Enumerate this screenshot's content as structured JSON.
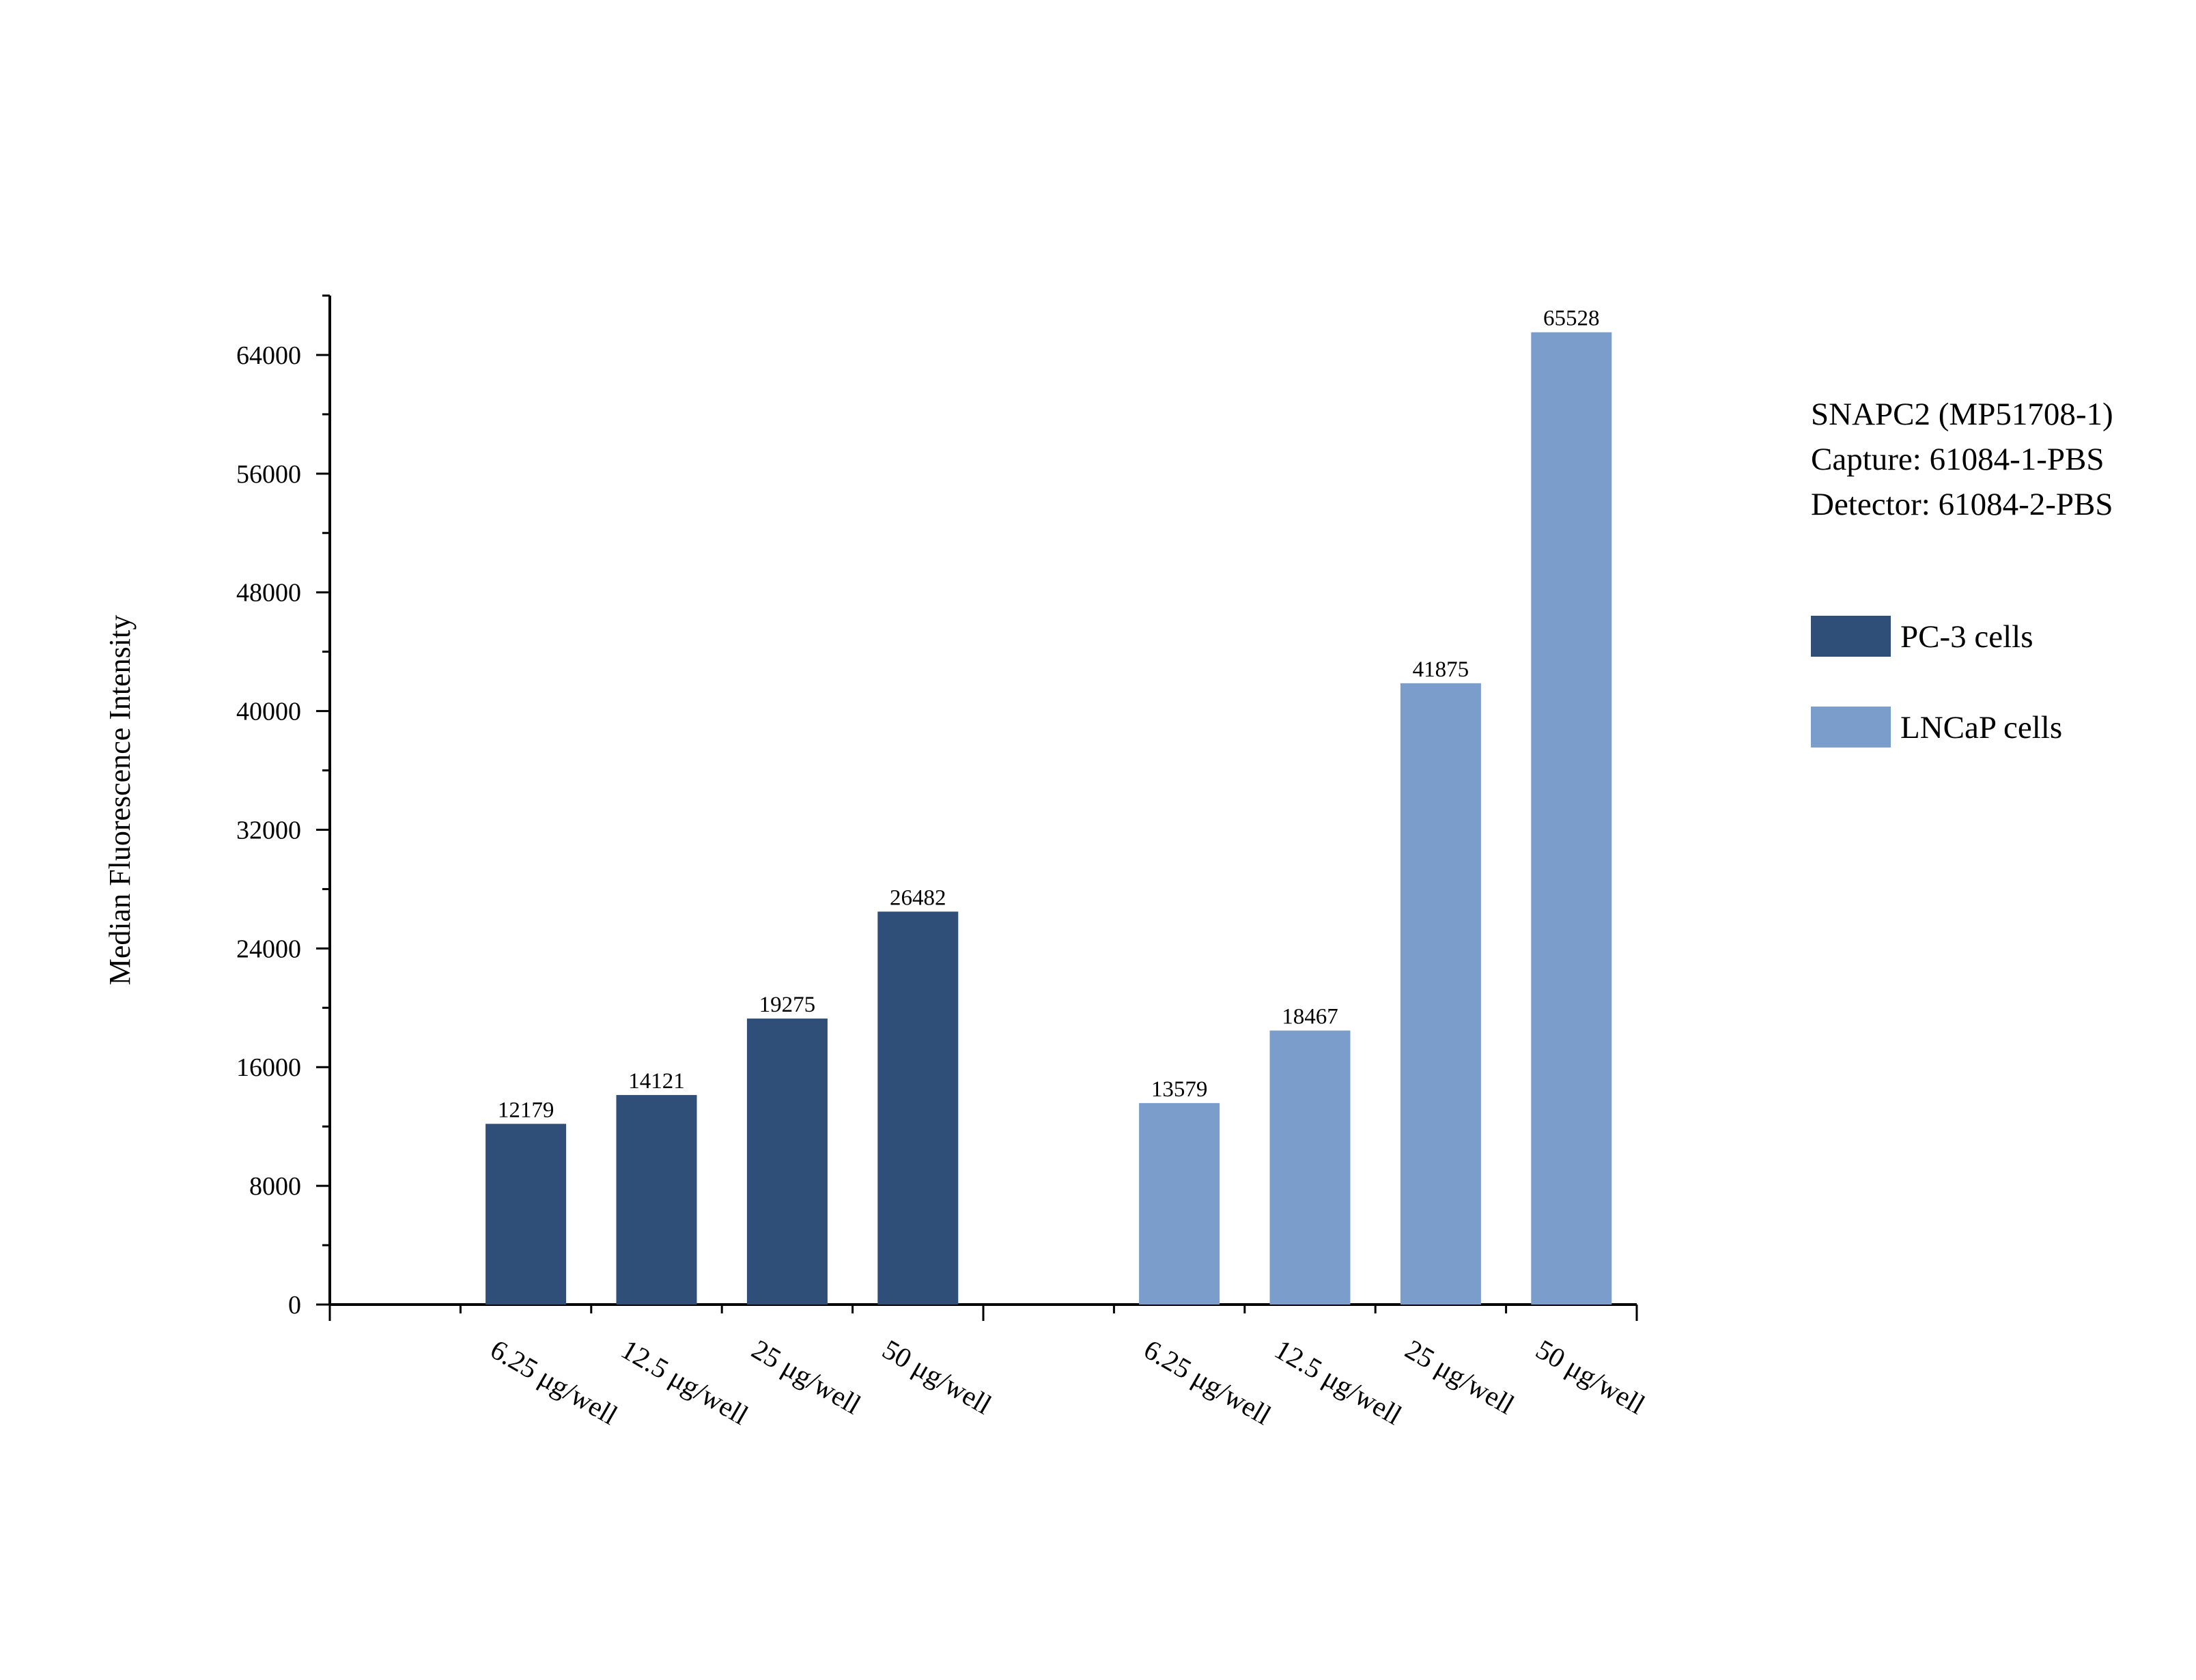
{
  "chart_data": {
    "type": "bar",
    "ylabel": "Median Fluorescence Intensity",
    "xlabel": "",
    "ylim": [
      0,
      68000
    ],
    "yticks": [
      0,
      8000,
      16000,
      24000,
      32000,
      40000,
      48000,
      56000,
      64000
    ],
    "grid": false,
    "legend_position": "right",
    "annotation": [
      "SNAPC2 (MP51708-1)",
      "Capture: 61084-1-PBS",
      "Detector: 61084-2-PBS"
    ],
    "groups": [
      {
        "name": "PC-3 cells",
        "color": "#2f4e78",
        "categories": [
          "6.25 μg/well",
          "12.5 μg/well",
          "25 μg/well",
          "50 μg/well"
        ],
        "values": [
          12179,
          14121,
          19275,
          26482
        ]
      },
      {
        "name": "LNCaP cells",
        "color": "#7b9dcb",
        "categories": [
          "6.25 μg/well",
          "12.5 μg/well",
          "25 μg/well",
          "50 μg/well"
        ],
        "values": [
          13579,
          18467,
          41875,
          65528
        ]
      }
    ]
  }
}
